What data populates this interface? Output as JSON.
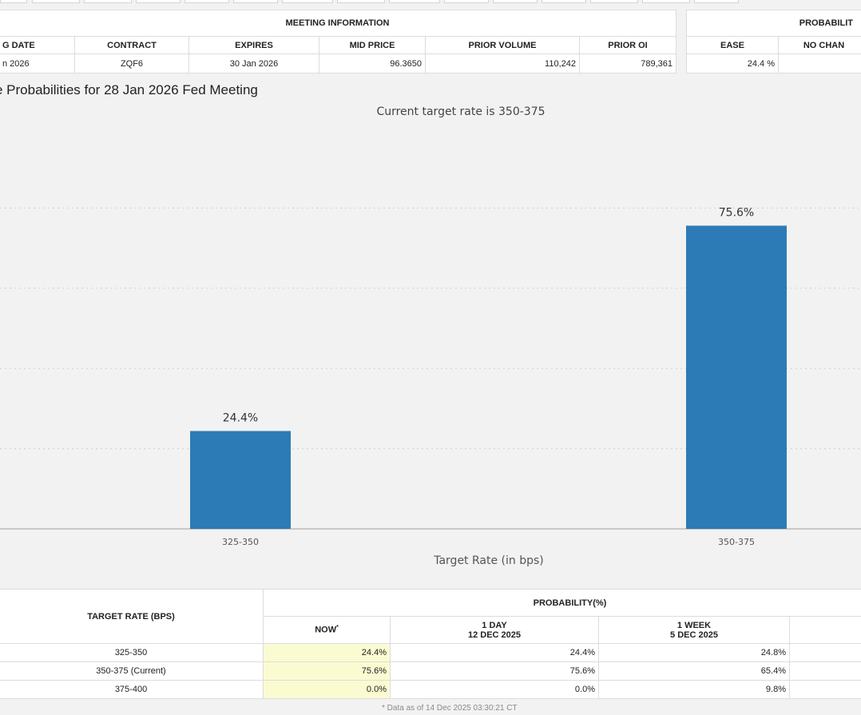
{
  "meeting_info": {
    "title": "MEETING INFORMATION",
    "columns": [
      "G DATE",
      "CONTRACT",
      "EXPIRES",
      "MID PRICE",
      "PRIOR VOLUME",
      "PRIOR OI"
    ],
    "row": [
      "n 2026",
      "ZQF6",
      "30 Jan 2026",
      "96.3650",
      "110,242",
      "789,361"
    ]
  },
  "probabilities_top": {
    "title": "PROBABILIT",
    "columns": [
      "EASE",
      "NO CHAN"
    ],
    "row": [
      "24.4 %",
      ""
    ]
  },
  "chart_heading": "e Probabilities for 28 Jan 2026 Fed Meeting",
  "chart_data": {
    "type": "bar",
    "title": "Current target rate is 350-375",
    "xlabel": "Target Rate (in bps)",
    "ylabel": "",
    "categories": [
      "325-350",
      "350-375"
    ],
    "values": [
      24.4,
      75.6
    ],
    "data_labels": [
      "24.4%",
      "75.6%"
    ],
    "ylim": [
      0,
      100
    ],
    "grid": true,
    "bar_color": "#2c7bb6"
  },
  "bottom_table": {
    "target_rate_header": "TARGET RATE (BPS)",
    "probability_header": "PROBABILITY(%)",
    "now_header": "NOW",
    "now_marker": "*",
    "day_header": "1 DAY",
    "day_date": "12 DEC 2025",
    "week_header": "1 WEEK",
    "week_date": "5 DEC 2025",
    "rows": [
      {
        "rate": "325-350",
        "now": "24.4%",
        "day": "24.4%",
        "week": "24.8%"
      },
      {
        "rate": "350-375 (Current)",
        "now": "75.6%",
        "day": "75.6%",
        "week": "65.4%"
      },
      {
        "rate": "375-400",
        "now": "0.0%",
        "day": "0.0%",
        "week": "9.8%"
      }
    ]
  },
  "footnote": "* Data as of 14 Dec 2025 03:30:21 CT"
}
